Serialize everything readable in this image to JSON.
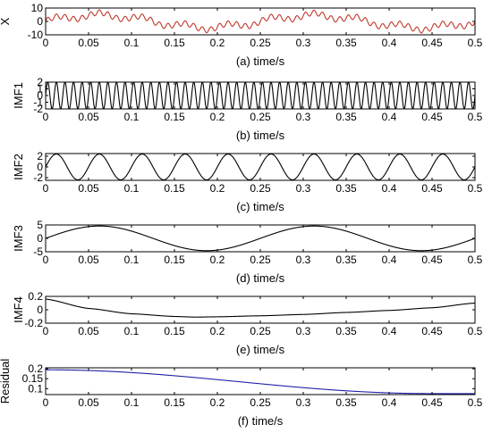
{
  "chart_data": [
    {
      "type": "line",
      "ylabel": "X",
      "caption": "(a) time/s",
      "xlim": [
        0,
        0.5
      ],
      "ylim": [
        -10,
        10
      ],
      "xticks": [
        "0",
        "0.05",
        "0.1",
        "0.15",
        "0.2",
        "0.25",
        "0.3",
        "0.35",
        "0.4",
        "0.45",
        "0.5"
      ],
      "yticks": [
        "10",
        "0",
        "-10"
      ],
      "yticks_values": [
        10,
        0,
        -10
      ],
      "line_color": "#c0392b",
      "series": [
        {
          "values": {
            "components": [
              {
                "amp": 2.0,
                "freq": 100,
                "phase": 0
              },
              {
                "amp": 2.0,
                "freq": 20,
                "phase": 0
              },
              {
                "amp": 4.5,
                "freq": 4,
                "phase": 0
              },
              {
                "amp": 0.15,
                "freq": 1,
                "phase": 1.5708
              },
              {
                "amp": 0.03,
                "freq": 2,
                "phase": 0.3
              }
            ]
          }
        }
      ]
    },
    {
      "type": "line",
      "ylabel": "IMF1",
      "caption": "(b) time/s",
      "xlim": [
        0,
        0.5
      ],
      "ylim": [
        -2,
        2
      ],
      "xticks": [
        "0",
        "0.05",
        "0.1",
        "0.15",
        "0.2",
        "0.25",
        "0.3",
        "0.35",
        "0.4",
        "0.45",
        "0.5"
      ],
      "yticks": [
        "2",
        "1",
        "0",
        "-1",
        "-2"
      ],
      "yticks_values": [
        2,
        1,
        0,
        -1,
        -2
      ],
      "line_color": "#000000",
      "series": [
        {
          "values": {
            "components": [
              {
                "amp": 2.0,
                "freq": 100,
                "phase": 0
              }
            ]
          }
        }
      ]
    },
    {
      "type": "line",
      "ylabel": "IMF2",
      "caption": "(c) time/s",
      "xlim": [
        0,
        0.5
      ],
      "ylim": [
        -2.5,
        2.5
      ],
      "xticks": [
        "0",
        "0.05",
        "0.1",
        "0.15",
        "0.2",
        "0.25",
        "0.3",
        "0.35",
        "0.4",
        "0.45",
        "0.5"
      ],
      "yticks": [
        "2",
        "0",
        "-2"
      ],
      "yticks_values": [
        2,
        0,
        -2
      ],
      "line_color": "#000000",
      "series": [
        {
          "values": {
            "components": [
              {
                "amp": 2.4,
                "freq": 20,
                "phase": 0
              }
            ]
          }
        }
      ]
    },
    {
      "type": "line",
      "ylabel": "IMF3",
      "caption": "(d) time/s",
      "xlim": [
        0,
        0.5
      ],
      "ylim": [
        -5,
        5
      ],
      "xticks": [
        "0",
        "0.05",
        "0.1",
        "0.15",
        "0.2",
        "0.25",
        "0.3",
        "0.35",
        "0.4",
        "0.45",
        "0.5"
      ],
      "yticks": [
        "5",
        "0",
        "-5"
      ],
      "yticks_values": [
        5,
        0,
        -5
      ],
      "line_color": "#000000",
      "series": [
        {
          "values": {
            "components": [
              {
                "amp": 4.6,
                "freq": 4,
                "phase": 0
              }
            ]
          }
        }
      ]
    },
    {
      "type": "line",
      "ylabel": "IMF4",
      "caption": "(e) time/s",
      "xlim": [
        0,
        0.5
      ],
      "ylim": [
        -0.2,
        0.2
      ],
      "xticks": [
        "0",
        "0.05",
        "0.1",
        "0.15",
        "0.2",
        "0.25",
        "0.3",
        "0.35",
        "0.4",
        "0.45",
        "0.5"
      ],
      "yticks": [
        "0.2",
        "0",
        "-0.2"
      ],
      "yticks_values": [
        0.2,
        0,
        -0.2
      ],
      "line_color": "#000000",
      "series": [
        {
          "values": {
            "points": [
              [
                0,
                0.16
              ],
              [
                0.05,
                0.02
              ],
              [
                0.1,
                -0.06
              ],
              [
                0.15,
                -0.1
              ],
              [
                0.175,
                -0.11
              ],
              [
                0.2,
                -0.105
              ],
              [
                0.25,
                -0.09
              ],
              [
                0.3,
                -0.07
              ],
              [
                0.35,
                -0.04
              ],
              [
                0.4,
                -0.01
              ],
              [
                0.45,
                0.03
              ],
              [
                0.5,
                0.1
              ]
            ]
          }
        }
      ]
    },
    {
      "type": "line",
      "ylabel": "Residual",
      "caption": "(f) time/s",
      "xlim": [
        0,
        0.5
      ],
      "ylim": [
        0.07,
        0.205
      ],
      "xticks": [
        "0",
        "0.05",
        "0.1",
        "0.15",
        "0.2",
        "0.25",
        "0.3",
        "0.35",
        "0.4",
        "0.45",
        "0.5"
      ],
      "yticks": [
        "0.2",
        "0.15",
        "0.1"
      ],
      "yticks_values": [
        0.2,
        0.15,
        0.1
      ],
      "line_color": "#1f1fa8",
      "series": [
        {
          "values": {
            "cosine": {
              "start": 0.195,
              "end": 0.075,
              "x_end": 0.45
            }
          }
        }
      ]
    }
  ]
}
